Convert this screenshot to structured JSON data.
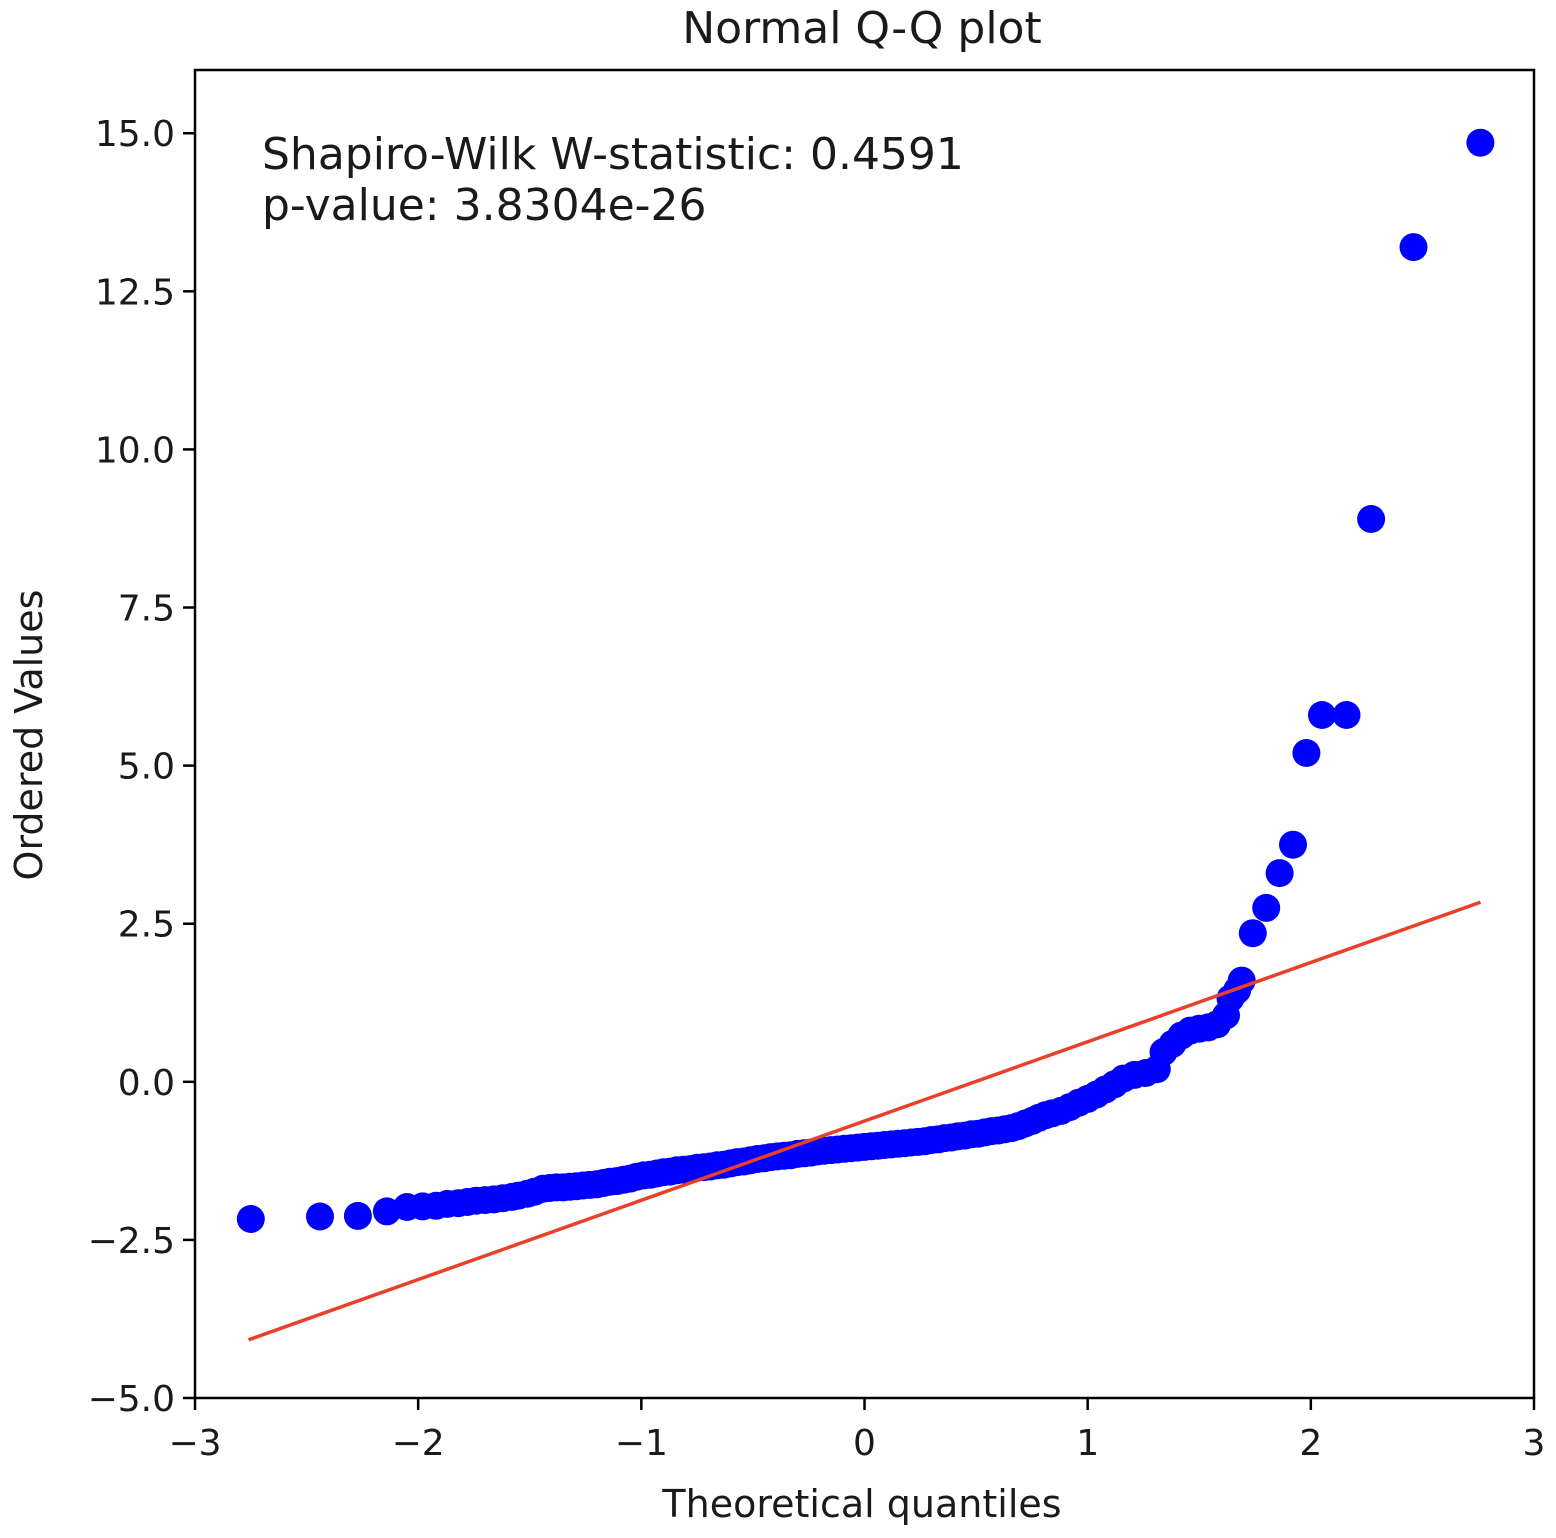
{
  "chart_data": {
    "type": "scatter",
    "title": "Normal Q-Q plot",
    "xlabel": "Theoretical quantiles",
    "ylabel": "Ordered Values",
    "xlim": [
      -3.0,
      3.0
    ],
    "ylim": [
      -5.0,
      16.0
    ],
    "xticks": [
      -3,
      -2,
      -1,
      0,
      1,
      2,
      3
    ],
    "xtick_labels": [
      "−3",
      "−2",
      "−1",
      "0",
      "1",
      "2",
      "3"
    ],
    "yticks": [
      -5.0,
      -2.5,
      0.0,
      2.5,
      5.0,
      7.5,
      10.0,
      12.5,
      15.0
    ],
    "ytick_labels": [
      "−5.0",
      "−2.5",
      "0.0",
      "2.5",
      "5.0",
      "7.5",
      "10.0",
      "12.5",
      "15.0"
    ],
    "grid": false,
    "annotation": [
      "Shapiro-Wilk W-statistic: 0.4591",
      "p-value: 3.8304e-26"
    ],
    "series": [
      {
        "kind": "points",
        "color": "#0000ff",
        "points": [
          [
            -2.75,
            -2.17
          ],
          [
            -2.44,
            -2.13
          ],
          [
            -2.27,
            -2.12
          ],
          [
            -2.14,
            -2.05
          ],
          [
            -2.05,
            -1.98
          ],
          [
            -1.98,
            -1.97
          ],
          [
            -1.92,
            -1.96
          ],
          [
            -1.87,
            -1.93
          ],
          [
            -1.82,
            -1.92
          ],
          [
            -1.78,
            -1.9
          ],
          [
            -1.74,
            -1.88
          ],
          [
            -1.7,
            -1.87
          ],
          [
            -1.66,
            -1.86
          ],
          [
            -1.62,
            -1.84
          ],
          [
            -1.58,
            -1.82
          ],
          [
            -1.55,
            -1.8
          ],
          [
            -1.51,
            -1.77
          ],
          [
            -1.48,
            -1.74
          ],
          [
            -1.44,
            -1.69
          ],
          [
            -1.41,
            -1.68
          ],
          [
            -1.38,
            -1.67
          ],
          [
            -1.35,
            -1.67
          ],
          [
            -1.32,
            -1.66
          ],
          [
            -1.29,
            -1.65
          ],
          [
            -1.26,
            -1.64
          ],
          [
            -1.23,
            -1.63
          ],
          [
            -1.2,
            -1.62
          ],
          [
            -1.17,
            -1.6
          ],
          [
            -1.14,
            -1.58
          ],
          [
            -1.11,
            -1.57
          ],
          [
            -1.08,
            -1.55
          ],
          [
            -1.05,
            -1.53
          ],
          [
            -1.02,
            -1.5
          ],
          [
            -0.99,
            -1.48
          ],
          [
            -0.96,
            -1.47
          ],
          [
            -0.93,
            -1.45
          ],
          [
            -0.9,
            -1.43
          ],
          [
            -0.87,
            -1.42
          ],
          [
            -0.84,
            -1.4
          ],
          [
            -0.81,
            -1.39
          ],
          [
            -0.78,
            -1.38
          ],
          [
            -0.75,
            -1.36
          ],
          [
            -0.72,
            -1.35
          ],
          [
            -0.69,
            -1.34
          ],
          [
            -0.66,
            -1.32
          ],
          [
            -0.63,
            -1.31
          ],
          [
            -0.6,
            -1.29
          ],
          [
            -0.57,
            -1.27
          ],
          [
            -0.54,
            -1.26
          ],
          [
            -0.51,
            -1.24
          ],
          [
            -0.48,
            -1.22
          ],
          [
            -0.45,
            -1.21
          ],
          [
            -0.42,
            -1.19
          ],
          [
            -0.39,
            -1.18
          ],
          [
            -0.36,
            -1.17
          ],
          [
            -0.33,
            -1.16
          ],
          [
            -0.3,
            -1.14
          ],
          [
            -0.27,
            -1.13
          ],
          [
            -0.24,
            -1.12
          ],
          [
            -0.21,
            -1.1
          ],
          [
            -0.18,
            -1.09
          ],
          [
            -0.15,
            -1.08
          ],
          [
            -0.12,
            -1.07
          ],
          [
            -0.09,
            -1.06
          ],
          [
            -0.06,
            -1.05
          ],
          [
            -0.03,
            -1.04
          ],
          [
            0.0,
            -1.03
          ],
          [
            0.03,
            -1.02
          ],
          [
            0.06,
            -1.01
          ],
          [
            0.09,
            -1.0
          ],
          [
            0.12,
            -0.99
          ],
          [
            0.15,
            -0.98
          ],
          [
            0.18,
            -0.97
          ],
          [
            0.21,
            -0.96
          ],
          [
            0.24,
            -0.95
          ],
          [
            0.27,
            -0.94
          ],
          [
            0.3,
            -0.92
          ],
          [
            0.33,
            -0.91
          ],
          [
            0.36,
            -0.89
          ],
          [
            0.39,
            -0.88
          ],
          [
            0.42,
            -0.86
          ],
          [
            0.45,
            -0.85
          ],
          [
            0.48,
            -0.83
          ],
          [
            0.51,
            -0.82
          ],
          [
            0.54,
            -0.8
          ],
          [
            0.57,
            -0.78
          ],
          [
            0.6,
            -0.77
          ],
          [
            0.63,
            -0.75
          ],
          [
            0.66,
            -0.73
          ],
          [
            0.69,
            -0.7
          ],
          [
            0.72,
            -0.66
          ],
          [
            0.75,
            -0.62
          ],
          [
            0.78,
            -0.57
          ],
          [
            0.81,
            -0.53
          ],
          [
            0.84,
            -0.5
          ],
          [
            0.88,
            -0.46
          ],
          [
            0.92,
            -0.4
          ],
          [
            0.96,
            -0.33
          ],
          [
            1.0,
            -0.27
          ],
          [
            1.04,
            -0.2
          ],
          [
            1.08,
            -0.12
          ],
          [
            1.12,
            -0.04
          ],
          [
            1.16,
            0.05
          ],
          [
            1.21,
            0.11
          ],
          [
            1.26,
            0.14
          ],
          [
            1.31,
            0.2
          ],
          [
            1.34,
            0.47
          ],
          [
            1.38,
            0.6
          ],
          [
            1.42,
            0.73
          ],
          [
            1.46,
            0.81
          ],
          [
            1.5,
            0.84
          ],
          [
            1.54,
            0.86
          ],
          [
            1.58,
            0.91
          ],
          [
            1.62,
            1.05
          ],
          [
            1.64,
            1.32
          ],
          [
            1.67,
            1.45
          ],
          [
            1.69,
            1.6
          ],
          [
            1.74,
            2.35
          ],
          [
            1.8,
            2.75
          ],
          [
            1.86,
            3.3
          ],
          [
            1.92,
            3.75
          ],
          [
            1.98,
            5.2
          ],
          [
            2.05,
            5.8
          ],
          [
            2.16,
            5.8
          ],
          [
            2.27,
            8.9
          ],
          [
            2.46,
            13.2
          ],
          [
            2.76,
            14.85
          ]
        ]
      },
      {
        "kind": "fit-line",
        "color": "#e8402a",
        "points": [
          [
            -2.76,
            -4.08
          ],
          [
            2.76,
            2.84
          ]
        ]
      }
    ]
  }
}
